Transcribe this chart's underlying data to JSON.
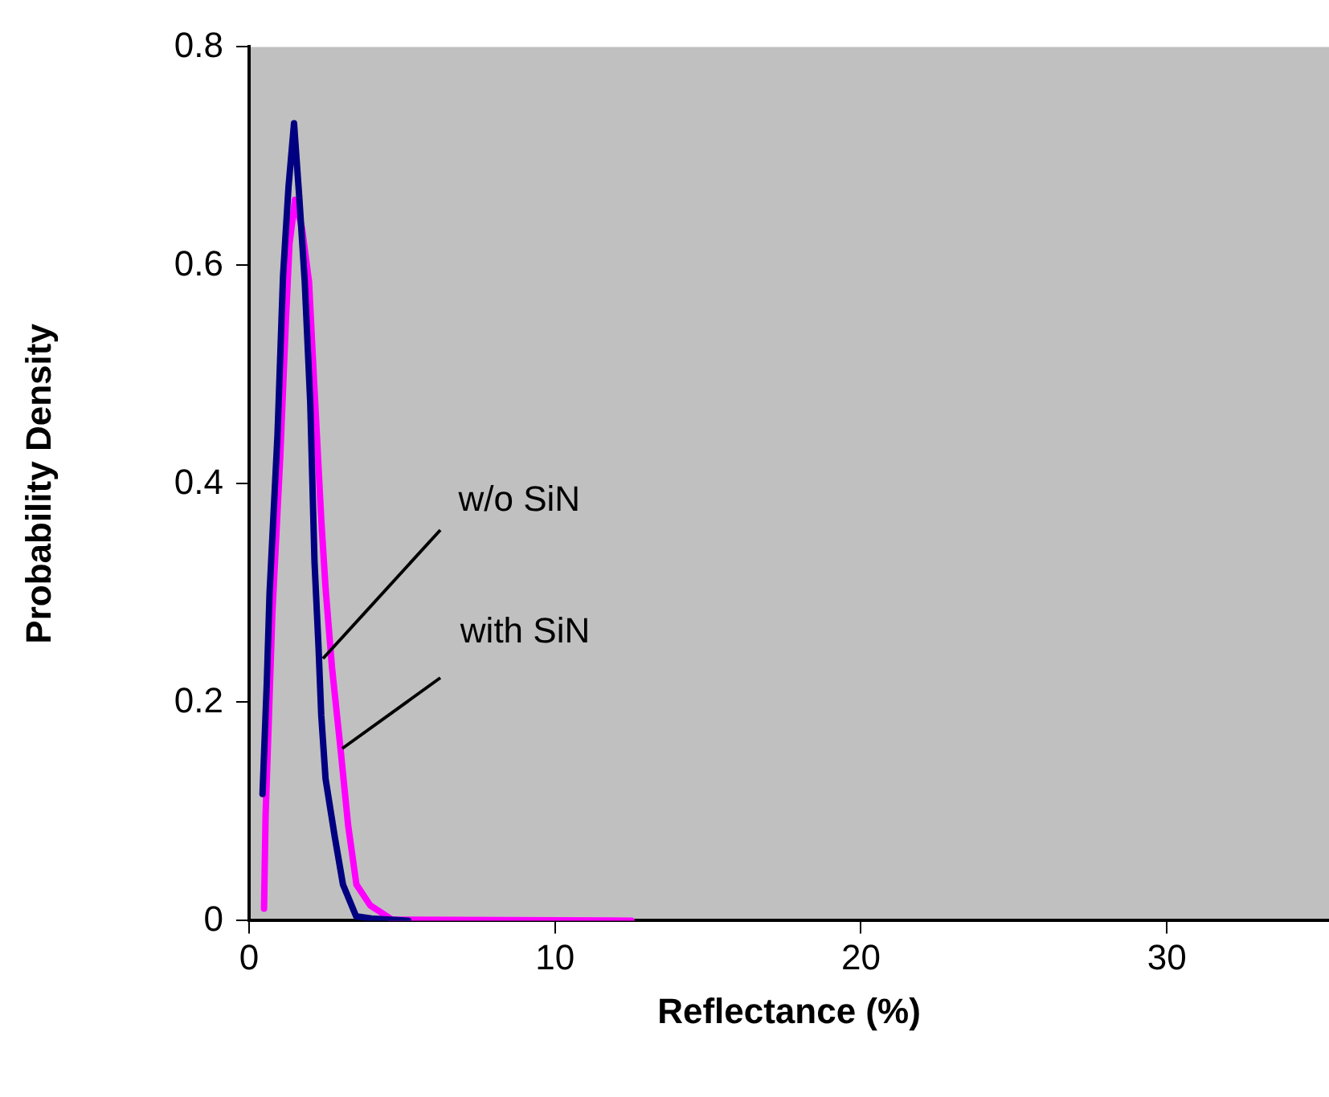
{
  "chart_data": {
    "type": "line",
    "xlabel": "Reflectance (%)",
    "ylabel": "Probability Density",
    "xlim": [
      0,
      35.3
    ],
    "xticks": [
      0,
      10,
      20,
      30
    ],
    "ylim": [
      0,
      0.8
    ],
    "yticks": [
      0,
      0.2,
      0.4,
      0.6,
      0.8
    ],
    "grid": false,
    "legend": false,
    "marker": "none",
    "line_style": "solid",
    "series": [
      {
        "color": "#000080",
        "x": [
          0.44,
          0.58,
          0.67,
          0.93,
          1.11,
          1.29,
          1.47,
          1.64,
          1.82,
          2.0,
          2.14,
          2.27,
          2.36,
          2.5,
          2.8,
          3.07,
          3.5,
          4.0,
          5.2
        ],
        "values": [
          0.116,
          0.218,
          0.3,
          0.445,
          0.59,
          0.672,
          0.73,
          0.663,
          0.585,
          0.474,
          0.328,
          0.251,
          0.188,
          0.13,
          0.077,
          0.033,
          0.004,
          0.002,
          0
        ]
      },
      {
        "color": "#ff00ff",
        "x": [
          0.49,
          0.54,
          0.76,
          1.02,
          1.2,
          1.32,
          1.5,
          1.73,
          1.96,
          2.09,
          2.36,
          2.5,
          2.71,
          2.98,
          3.24,
          3.51,
          3.96,
          4.67,
          12.5
        ],
        "values": [
          0.011,
          0.096,
          0.28,
          0.425,
          0.547,
          0.619,
          0.66,
          0.634,
          0.585,
          0.513,
          0.367,
          0.305,
          0.232,
          0.16,
          0.087,
          0.033,
          0.014,
          0.001,
          0
        ]
      }
    ],
    "annotations": [
      {
        "text": "w/o SiN",
        "x": 2.43,
        "y": 0.24
      },
      {
        "text": "with SiN",
        "x": 3.07,
        "y": 0.158
      }
    ]
  }
}
